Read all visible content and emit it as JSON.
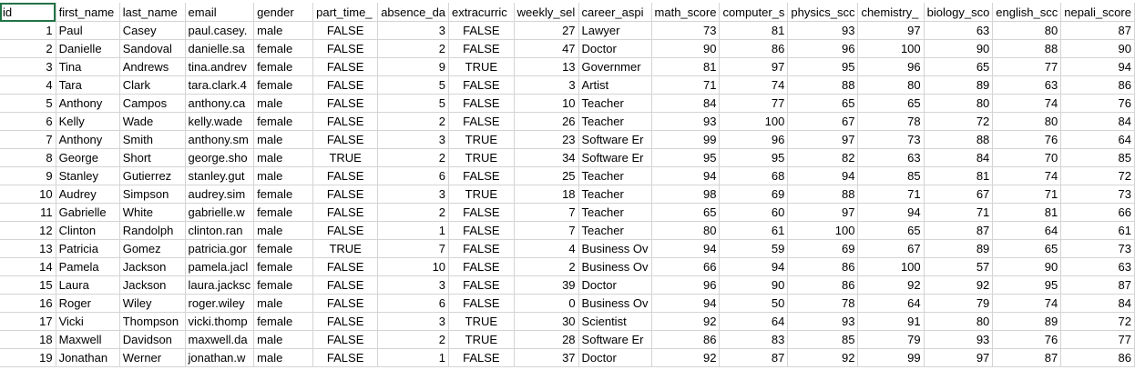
{
  "sheet": {
    "headers": [
      "id",
      "first_name",
      "last_name",
      "email",
      "gender",
      "part_time_",
      "absence_da",
      "extracurric",
      "weekly_sel",
      "career_aspi",
      "math_score",
      "computer_s",
      "physics_scc",
      "chemistry_",
      "biology_sco",
      "english_scc",
      "nepali_score"
    ],
    "rows": [
      [
        "1",
        "Paul",
        "Casey",
        "paul.casey.",
        "male",
        "FALSE",
        "3",
        "FALSE",
        "27",
        "Lawyer",
        "73",
        "81",
        "93",
        "97",
        "63",
        "80",
        "87"
      ],
      [
        "2",
        "Danielle",
        "Sandoval",
        "danielle.sa",
        "female",
        "FALSE",
        "2",
        "FALSE",
        "47",
        "Doctor",
        "90",
        "86",
        "96",
        "100",
        "90",
        "88",
        "90"
      ],
      [
        "3",
        "Tina",
        "Andrews",
        "tina.andrev",
        "female",
        "FALSE",
        "9",
        "TRUE",
        "13",
        "Governmer",
        "81",
        "97",
        "95",
        "96",
        "65",
        "77",
        "94"
      ],
      [
        "4",
        "Tara",
        "Clark",
        "tara.clark.4",
        "female",
        "FALSE",
        "5",
        "FALSE",
        "3",
        "Artist",
        "71",
        "74",
        "88",
        "80",
        "89",
        "63",
        "86"
      ],
      [
        "5",
        "Anthony",
        "Campos",
        "anthony.ca",
        "male",
        "FALSE",
        "5",
        "FALSE",
        "10",
        "Teacher",
        "84",
        "77",
        "65",
        "65",
        "80",
        "74",
        "76"
      ],
      [
        "6",
        "Kelly",
        "Wade",
        "kelly.wade",
        "female",
        "FALSE",
        "2",
        "FALSE",
        "26",
        "Teacher",
        "93",
        "100",
        "67",
        "78",
        "72",
        "80",
        "84"
      ],
      [
        "7",
        "Anthony",
        "Smith",
        "anthony.sm",
        "male",
        "FALSE",
        "3",
        "TRUE",
        "23",
        "Software Er",
        "99",
        "96",
        "97",
        "73",
        "88",
        "76",
        "64"
      ],
      [
        "8",
        "George",
        "Short",
        "george.sho",
        "male",
        "TRUE",
        "2",
        "TRUE",
        "34",
        "Software Er",
        "95",
        "95",
        "82",
        "63",
        "84",
        "70",
        "85"
      ],
      [
        "9",
        "Stanley",
        "Gutierrez",
        "stanley.gut",
        "male",
        "FALSE",
        "6",
        "FALSE",
        "25",
        "Teacher",
        "94",
        "68",
        "94",
        "85",
        "81",
        "74",
        "72"
      ],
      [
        "10",
        "Audrey",
        "Simpson",
        "audrey.sim",
        "female",
        "FALSE",
        "3",
        "TRUE",
        "18",
        "Teacher",
        "98",
        "69",
        "88",
        "71",
        "67",
        "71",
        "73"
      ],
      [
        "11",
        "Gabrielle",
        "White",
        "gabrielle.w",
        "female",
        "FALSE",
        "2",
        "FALSE",
        "7",
        "Teacher",
        "65",
        "60",
        "97",
        "94",
        "71",
        "81",
        "66"
      ],
      [
        "12",
        "Clinton",
        "Randolph",
        "clinton.ran",
        "male",
        "FALSE",
        "1",
        "FALSE",
        "7",
        "Teacher",
        "80",
        "61",
        "100",
        "65",
        "87",
        "64",
        "61"
      ],
      [
        "13",
        "Patricia",
        "Gomez",
        "patricia.gor",
        "female",
        "TRUE",
        "7",
        "FALSE",
        "4",
        "Business Ov",
        "94",
        "59",
        "69",
        "67",
        "89",
        "65",
        "73"
      ],
      [
        "14",
        "Pamela",
        "Jackson",
        "pamela.jacl",
        "female",
        "FALSE",
        "10",
        "FALSE",
        "2",
        "Business Ov",
        "66",
        "94",
        "86",
        "100",
        "57",
        "90",
        "63"
      ],
      [
        "15",
        "Laura",
        "Jackson",
        "laura.jacksc",
        "female",
        "FALSE",
        "3",
        "FALSE",
        "39",
        "Doctor",
        "96",
        "90",
        "86",
        "92",
        "92",
        "95",
        "87"
      ],
      [
        "16",
        "Roger",
        "Wiley",
        "roger.wiley",
        "male",
        "FALSE",
        "6",
        "FALSE",
        "0",
        "Business Ov",
        "94",
        "50",
        "78",
        "64",
        "79",
        "74",
        "84"
      ],
      [
        "17",
        "Vicki",
        "Thompson",
        "vicki.thomp",
        "female",
        "FALSE",
        "3",
        "TRUE",
        "30",
        "Scientist",
        "92",
        "64",
        "93",
        "91",
        "80",
        "89",
        "72"
      ],
      [
        "18",
        "Maxwell",
        "Davidson",
        "maxwell.da",
        "male",
        "FALSE",
        "2",
        "TRUE",
        "28",
        "Software Er",
        "86",
        "83",
        "85",
        "79",
        "93",
        "76",
        "77"
      ],
      [
        "19",
        "Jonathan",
        "Werner",
        "jonathan.w",
        "male",
        "FALSE",
        "1",
        "FALSE",
        "37",
        "Doctor",
        "92",
        "87",
        "92",
        "99",
        "97",
        "87",
        "86"
      ]
    ]
  }
}
